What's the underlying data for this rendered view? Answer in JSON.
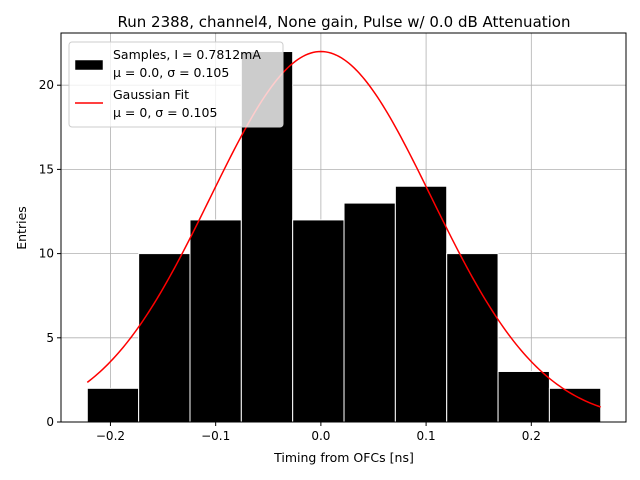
{
  "chart_data": {
    "type": "bar",
    "title": "Run 2388, channel4, None gain, Pulse w/ 0.0 dB Attenuation",
    "xlabel": "Timing from OFCs [ns]",
    "ylabel": "Entries",
    "xlim": [
      -0.247,
      0.29
    ],
    "ylim": [
      0,
      23.1
    ],
    "grid": true,
    "legend_position": "upper-left",
    "xticks": [
      -0.2,
      -0.1,
      0.0,
      0.1,
      0.2
    ],
    "xtick_labels": [
      "−0.2",
      "−0.1",
      "0.0",
      "0.1",
      "0.2"
    ],
    "yticks": [
      0,
      5,
      10,
      15,
      20
    ],
    "ytick_labels": [
      "0",
      "5",
      "10",
      "15",
      "20"
    ],
    "histogram": {
      "name": "Samples, I = 0.7812mA",
      "stats_label": "μ = 0.0, σ = 0.105",
      "color": "#000000",
      "edgecolor": "#ffffff",
      "bin_edges": [
        -0.222,
        -0.1732,
        -0.1244,
        -0.0756,
        -0.0268,
        0.022,
        0.0708,
        0.1196,
        0.1684,
        0.2172,
        0.266
      ],
      "counts": [
        2,
        10,
        12,
        22,
        12,
        13,
        14,
        10,
        3,
        2
      ]
    },
    "fit": {
      "name": "Gaussian Fit",
      "stats_label": "μ = 0, σ = 0.105",
      "color": "#ff0000",
      "mu": 0,
      "sigma": 0.105,
      "amplitude": 22,
      "x_range": [
        -0.222,
        0.266
      ]
    }
  }
}
